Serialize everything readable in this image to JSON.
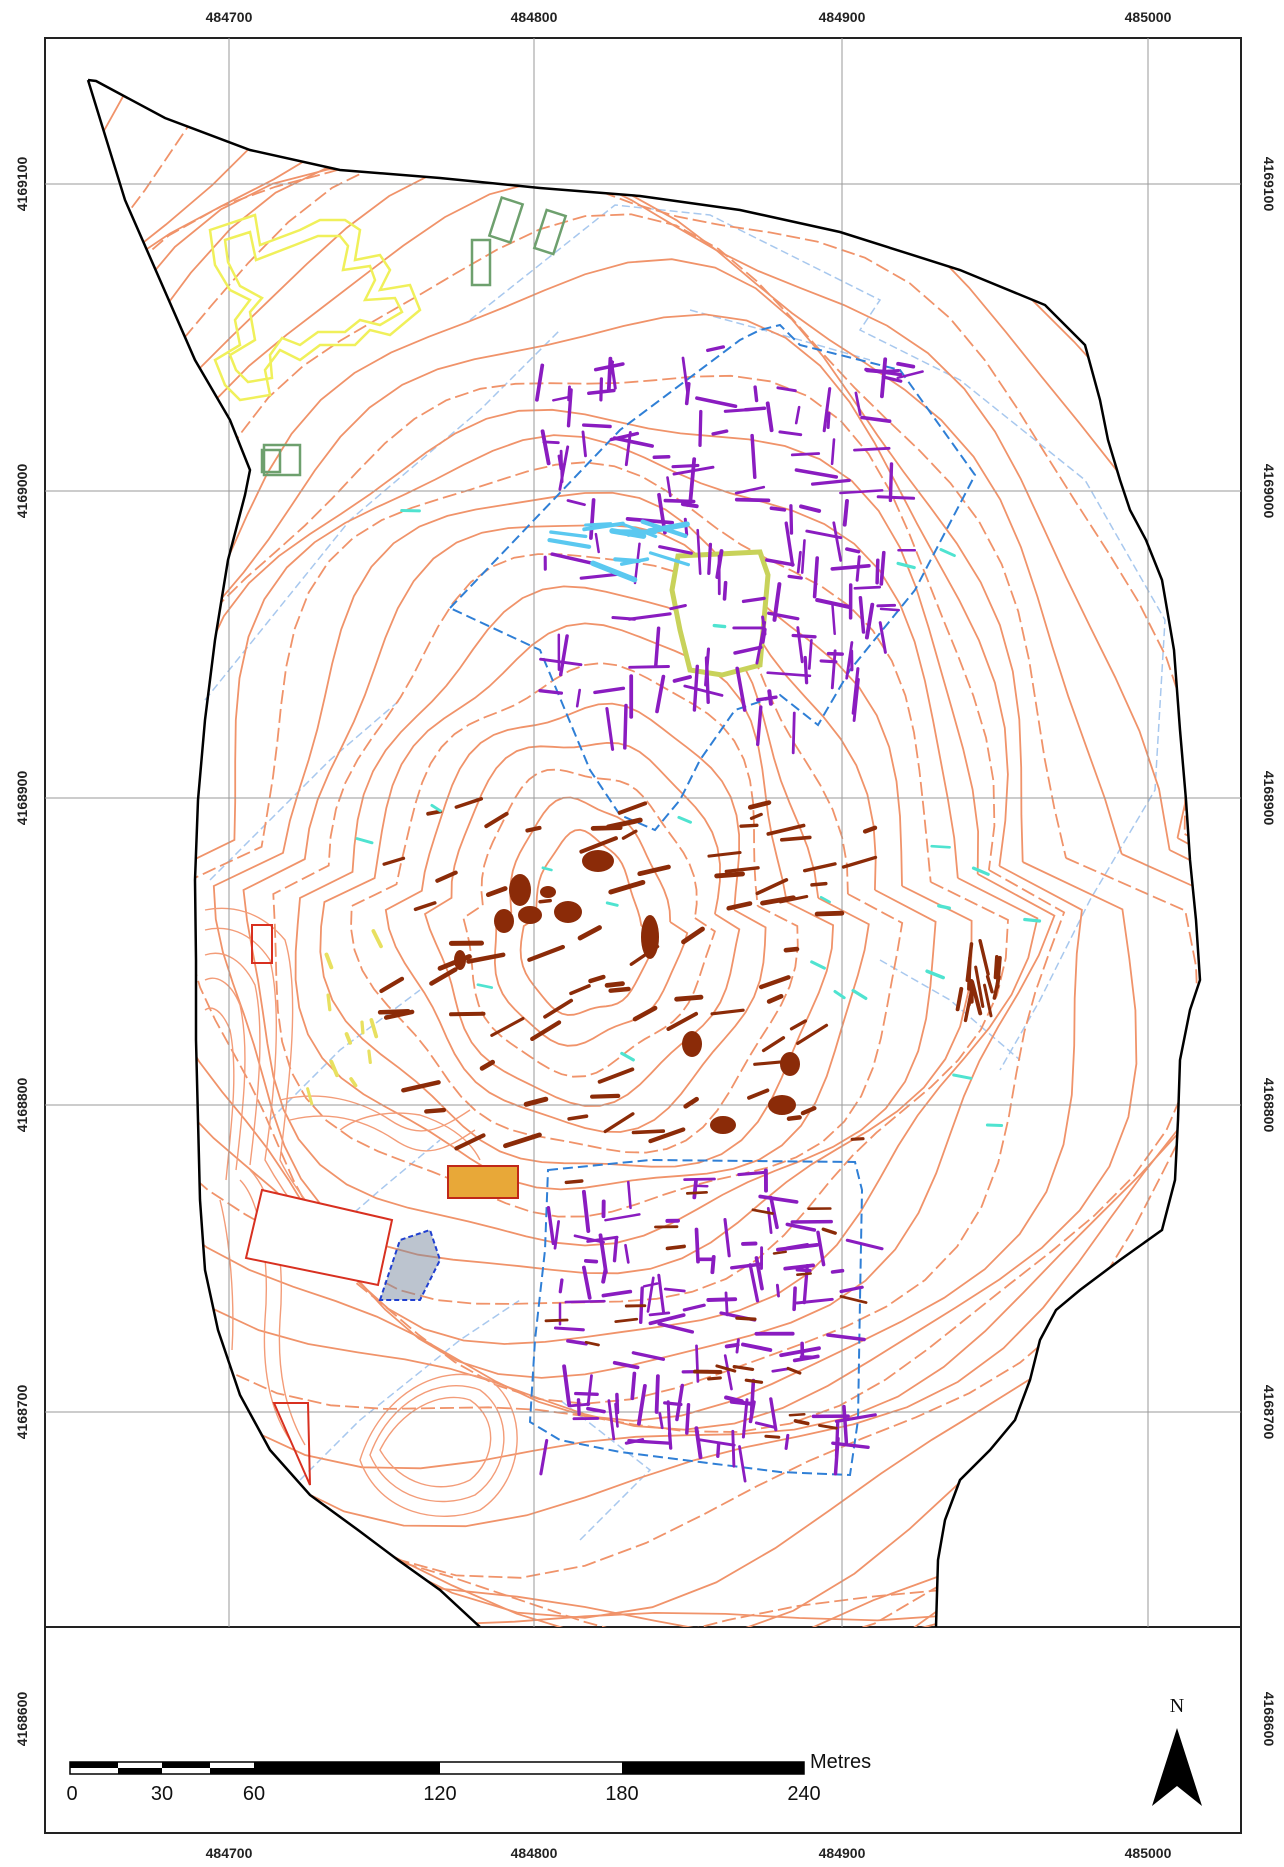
{
  "grid": {
    "eastings": [
      "484700",
      "484800",
      "484900",
      "485000"
    ],
    "northings": [
      "4169100",
      "4169000",
      "4168900",
      "4168800",
      "4168700",
      "4168600"
    ]
  },
  "scale_bar": {
    "unit": "Metres",
    "ticks": [
      "0",
      "30",
      "60",
      "120",
      "180",
      "240"
    ]
  },
  "north_arrow": {
    "label": "N"
  },
  "colors": {
    "contour": "#f0936a",
    "boundary": "#000000",
    "survey_area": "#2f7fd6",
    "survey_tiles": "#a8c8ee",
    "anomaly_purple": "#8a1cc0",
    "anomaly_brown": "#8b2b08",
    "anomaly_cyan": "#4fe3d0",
    "building_yellow": "#f0f05a",
    "building_green": "#6ea06e",
    "modern_red": "#d83020"
  }
}
